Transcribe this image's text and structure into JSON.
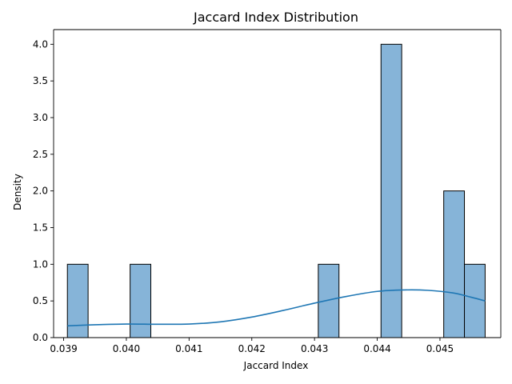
{
  "chart_data": {
    "type": "bar",
    "title": "Jaccard Index Distribution",
    "xlabel": "Jaccard Index",
    "ylabel": "Density",
    "xlim": [
      0.03884,
      0.04597
    ],
    "ylim": [
      0,
      4.2
    ],
    "xticks": [
      "0.039",
      "0.040",
      "0.041",
      "0.042",
      "0.043",
      "0.044",
      "0.045"
    ],
    "yticks": [
      "0.0",
      "0.5",
      "1.0",
      "1.5",
      "2.0",
      "2.5",
      "3.0",
      "3.5",
      "4.0"
    ],
    "bins": [
      {
        "x0": 0.03906,
        "x1": 0.03939,
        "value": 1
      },
      {
        "x0": 0.04006,
        "x1": 0.04039,
        "value": 1
      },
      {
        "x0": 0.04306,
        "x1": 0.04339,
        "value": 1
      },
      {
        "x0": 0.04406,
        "x1": 0.04439,
        "value": 4
      },
      {
        "x0": 0.04506,
        "x1": 0.04539,
        "value": 2
      },
      {
        "x0": 0.04539,
        "x1": 0.04572,
        "value": 1
      }
    ],
    "kde": {
      "x": [
        0.03906,
        0.0395,
        0.04,
        0.0405,
        0.041,
        0.0415,
        0.042,
        0.0425,
        0.043,
        0.0435,
        0.044,
        0.04443,
        0.0448,
        0.0452,
        0.0455,
        0.04572
      ],
      "y": [
        0.16,
        0.175,
        0.185,
        0.182,
        0.185,
        0.215,
        0.28,
        0.37,
        0.47,
        0.56,
        0.63,
        0.65,
        0.645,
        0.61,
        0.55,
        0.5
      ]
    },
    "grid": false,
    "colors": {
      "bar_fill": "#86b4d8",
      "bar_edge": "#000000",
      "kde_line": "#1f77b4"
    }
  }
}
